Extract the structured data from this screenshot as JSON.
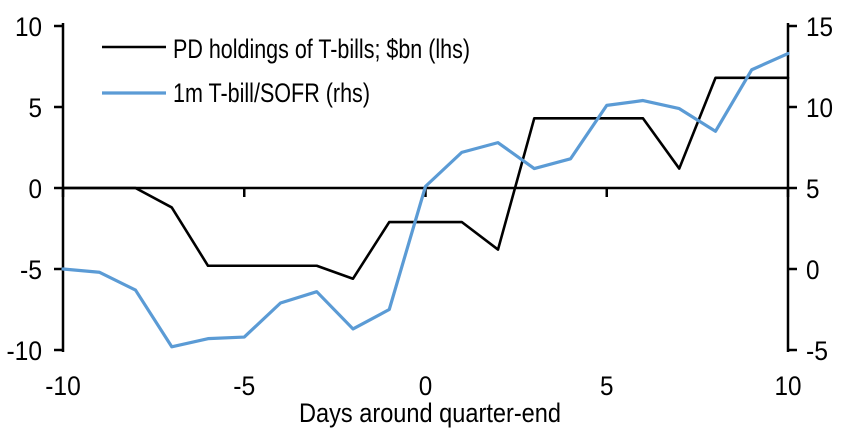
{
  "chart_data": {
    "type": "line",
    "title": "",
    "xlabel": "Days around quarter-end",
    "grid": false,
    "legend_position": "top-left",
    "x": [
      -10,
      -9,
      -8,
      -7,
      -6,
      -5,
      -4,
      -3,
      -2,
      -1,
      0,
      1,
      2,
      3,
      4,
      5,
      6,
      7,
      8,
      9,
      10
    ],
    "x_ticks": [
      -10,
      -5,
      0,
      5,
      10
    ],
    "axes": {
      "left": {
        "min": -10,
        "max": 10,
        "ticks": [
          10,
          5,
          0,
          -5,
          -10
        ]
      },
      "right": {
        "min": -5,
        "max": 15,
        "ticks": [
          15,
          10,
          5,
          0,
          -5
        ]
      }
    },
    "series": [
      {
        "name": "PD holdings of T-bills; $bn (lhs)",
        "axis": "left",
        "color": "#000000",
        "values": [
          0,
          0,
          0,
          -1.2,
          -4.8,
          -4.8,
          -4.8,
          -4.8,
          -5.6,
          -2.1,
          -2.1,
          -2.1,
          -3.8,
          4.3,
          4.3,
          4.3,
          4.3,
          1.2,
          6.8,
          6.8,
          6.8
        ]
      },
      {
        "name": "1m T-bill/SOFR (rhs)",
        "axis": "right",
        "color": "#5B9BD5",
        "values": [
          0,
          -0.2,
          -1.3,
          -4.8,
          -4.3,
          -4.2,
          -2.1,
          -1.4,
          -3.7,
          -2.5,
          5.1,
          7.2,
          7.8,
          6.2,
          6.8,
          10.1,
          10.4,
          9.9,
          8.5,
          12.3,
          13.3
        ]
      }
    ]
  }
}
